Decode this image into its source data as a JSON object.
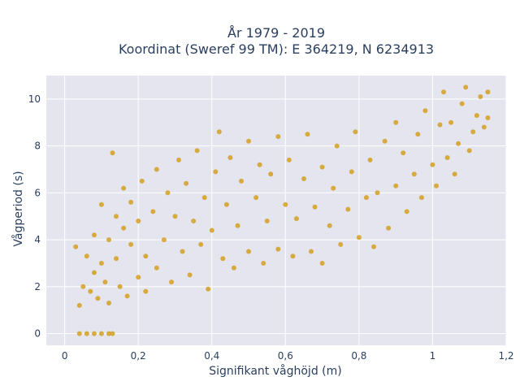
{
  "chart_data": {
    "type": "scatter",
    "title": "År 1979 - 2019",
    "subtitle": "Koordinat (Sweref 99 TM): E 364219, N 6234913",
    "xlabel": "Signifikant våghöjd (m)",
    "ylabel": "Vågperiod (s)",
    "xlim": [
      -0.05,
      1.2
    ],
    "ylim": [
      -0.5,
      11
    ],
    "xticks": [
      0,
      0.2,
      0.4,
      0.6,
      0.8,
      1,
      1.2
    ],
    "xtick_labels": [
      "0",
      "0,2",
      "0,4",
      "0,6",
      "0,8",
      "1",
      "1,2"
    ],
    "yticks": [
      0,
      2,
      4,
      6,
      8,
      10
    ],
    "ytick_labels": [
      "0",
      "2",
      "4",
      "6",
      "8",
      "10"
    ],
    "grid": true,
    "background": "#e5e5f0",
    "marker_color": "#d4a020",
    "series": [
      {
        "points": [
          [
            0.04,
            0.0
          ],
          [
            0.06,
            0.0
          ],
          [
            0.08,
            0.0
          ],
          [
            0.1,
            0.0
          ],
          [
            0.12,
            0.0
          ],
          [
            0.13,
            0.0
          ],
          [
            0.03,
            3.7
          ],
          [
            0.04,
            1.2
          ],
          [
            0.05,
            2.0
          ],
          [
            0.06,
            3.3
          ],
          [
            0.07,
            1.8
          ],
          [
            0.08,
            2.6
          ],
          [
            0.08,
            4.2
          ],
          [
            0.09,
            1.5
          ],
          [
            0.1,
            3.0
          ],
          [
            0.1,
            5.5
          ],
          [
            0.11,
            2.2
          ],
          [
            0.12,
            4.0
          ],
          [
            0.12,
            1.3
          ],
          [
            0.13,
            7.7
          ],
          [
            0.14,
            3.2
          ],
          [
            0.14,
            5.0
          ],
          [
            0.15,
            2.0
          ],
          [
            0.16,
            4.5
          ],
          [
            0.16,
            6.2
          ],
          [
            0.17,
            1.6
          ],
          [
            0.18,
            3.8
          ],
          [
            0.18,
            5.6
          ],
          [
            0.2,
            2.4
          ],
          [
            0.2,
            4.8
          ],
          [
            0.21,
            6.5
          ],
          [
            0.22,
            3.3
          ],
          [
            0.22,
            1.8
          ],
          [
            0.24,
            5.2
          ],
          [
            0.25,
            2.8
          ],
          [
            0.25,
            7.0
          ],
          [
            0.27,
            4.0
          ],
          [
            0.28,
            6.0
          ],
          [
            0.29,
            2.2
          ],
          [
            0.3,
            5.0
          ],
          [
            0.31,
            7.4
          ],
          [
            0.32,
            3.5
          ],
          [
            0.33,
            6.4
          ],
          [
            0.34,
            2.5
          ],
          [
            0.35,
            4.8
          ],
          [
            0.36,
            7.8
          ],
          [
            0.37,
            3.8
          ],
          [
            0.38,
            5.8
          ],
          [
            0.39,
            1.9
          ],
          [
            0.4,
            4.4
          ],
          [
            0.41,
            6.9
          ],
          [
            0.42,
            8.6
          ],
          [
            0.43,
            3.2
          ],
          [
            0.44,
            5.5
          ],
          [
            0.45,
            7.5
          ],
          [
            0.46,
            2.8
          ],
          [
            0.47,
            4.6
          ],
          [
            0.48,
            6.5
          ],
          [
            0.5,
            8.2
          ],
          [
            0.5,
            3.5
          ],
          [
            0.52,
            5.8
          ],
          [
            0.53,
            7.2
          ],
          [
            0.54,
            3.0
          ],
          [
            0.55,
            4.8
          ],
          [
            0.56,
            6.8
          ],
          [
            0.58,
            8.4
          ],
          [
            0.58,
            3.6
          ],
          [
            0.6,
            5.5
          ],
          [
            0.61,
            7.4
          ],
          [
            0.62,
            3.3
          ],
          [
            0.63,
            4.9
          ],
          [
            0.65,
            6.6
          ],
          [
            0.66,
            8.5
          ],
          [
            0.67,
            3.5
          ],
          [
            0.68,
            5.4
          ],
          [
            0.7,
            7.1
          ],
          [
            0.7,
            3.0
          ],
          [
            0.72,
            4.6
          ],
          [
            0.73,
            6.2
          ],
          [
            0.74,
            8.0
          ],
          [
            0.75,
            3.8
          ],
          [
            0.77,
            5.3
          ],
          [
            0.78,
            6.9
          ],
          [
            0.79,
            8.6
          ],
          [
            0.8,
            4.1
          ],
          [
            0.82,
            5.8
          ],
          [
            0.83,
            7.4
          ],
          [
            0.84,
            3.7
          ],
          [
            0.85,
            6.0
          ],
          [
            0.87,
            8.2
          ],
          [
            0.88,
            4.5
          ],
          [
            0.9,
            6.3
          ],
          [
            0.9,
            9.0
          ],
          [
            0.92,
            7.7
          ],
          [
            0.93,
            5.2
          ],
          [
            0.95,
            6.8
          ],
          [
            0.96,
            8.5
          ],
          [
            0.97,
            5.8
          ],
          [
            0.98,
            9.5
          ],
          [
            1.0,
            7.2
          ],
          [
            1.01,
            6.3
          ],
          [
            1.02,
            8.9
          ],
          [
            1.03,
            10.3
          ],
          [
            1.04,
            7.5
          ],
          [
            1.05,
            9.0
          ],
          [
            1.06,
            6.8
          ],
          [
            1.07,
            8.1
          ],
          [
            1.08,
            9.8
          ],
          [
            1.09,
            10.5
          ],
          [
            1.1,
            7.8
          ],
          [
            1.11,
            8.6
          ],
          [
            1.12,
            9.3
          ],
          [
            1.13,
            10.1
          ],
          [
            1.14,
            8.8
          ],
          [
            1.15,
            10.3
          ],
          [
            1.15,
            9.2
          ]
        ]
      }
    ]
  }
}
